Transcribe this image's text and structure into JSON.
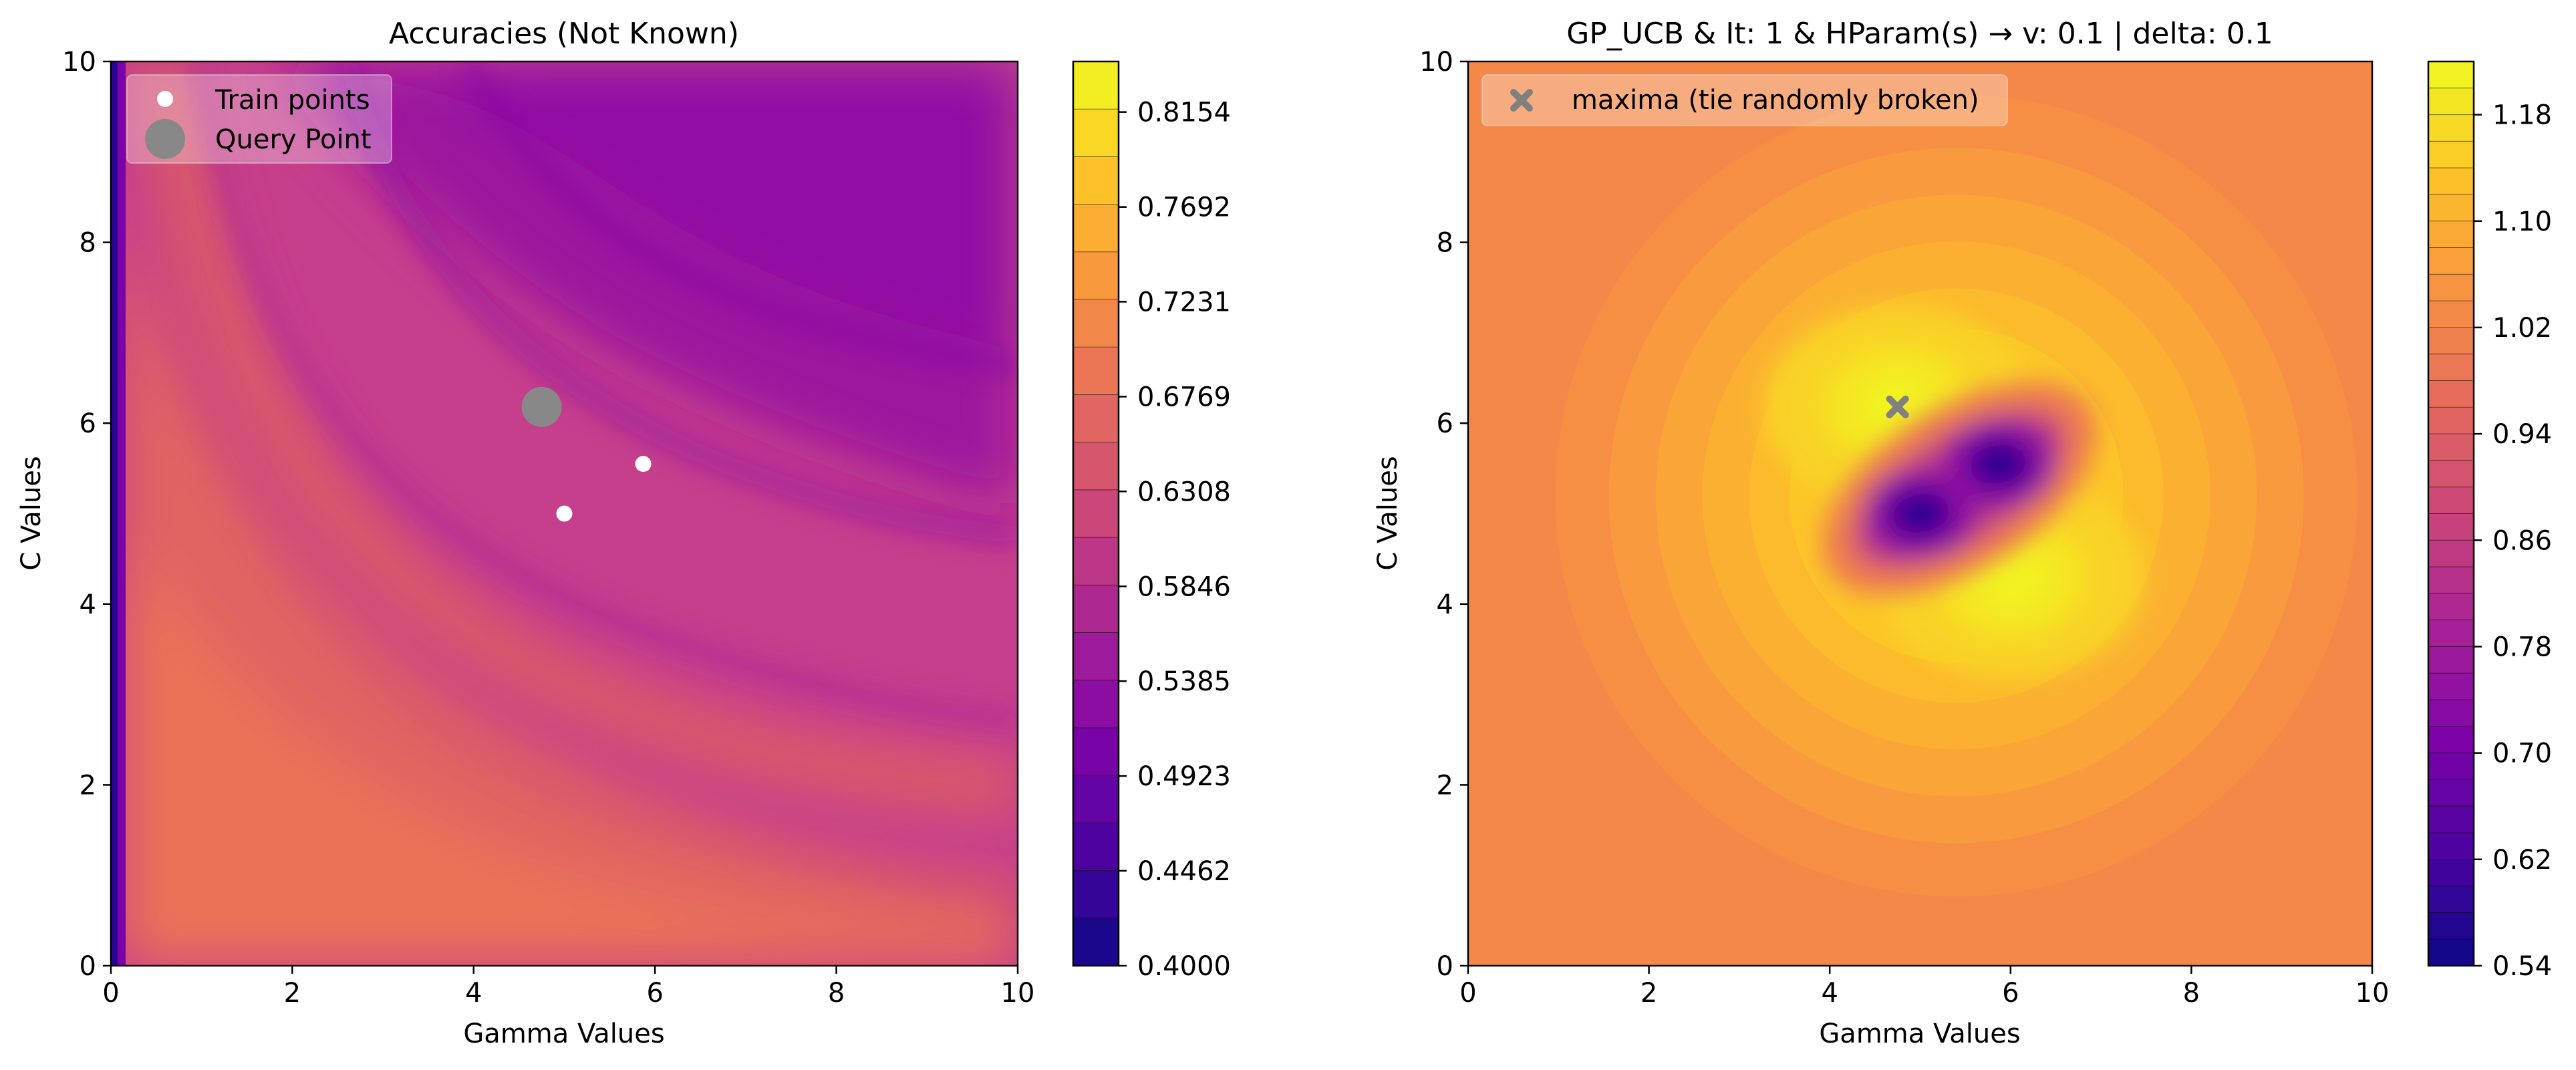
{
  "chart_data": [
    {
      "type": "heatmap",
      "title": "Accuracies (Not Known)",
      "xlabel": "Gamma Values",
      "ylabel": "C Values",
      "xlim": [
        0,
        10
      ],
      "ylim": [
        0,
        10
      ],
      "xticks": [
        "0",
        "2",
        "4",
        "6",
        "8",
        "10"
      ],
      "yticks": [
        "0",
        "2",
        "4",
        "6",
        "8",
        "10"
      ],
      "colormap": "plasma",
      "colorbar": {
        "min": 0.4,
        "max": 0.84,
        "tick_values": [
          0.4,
          0.4462,
          0.4923,
          0.5385,
          0.5846,
          0.6308,
          0.6769,
          0.7231,
          0.7692,
          0.8154
        ],
        "tick_labels": [
          "0.4000",
          "0.4462",
          "0.4923",
          "0.5385",
          "0.5846",
          "0.6308",
          "0.6769",
          "0.7231",
          "0.7692",
          "0.8154"
        ],
        "levels": 19
      },
      "legend": {
        "placement": "top-left",
        "entries": [
          {
            "label": "Train points",
            "marker": "circle",
            "color": "#ffffff"
          },
          {
            "label": "Query Point",
            "marker": "circle-large",
            "color": "#888888"
          }
        ]
      },
      "train_points": [
        {
          "x": 5.0,
          "y": 5.0
        },
        {
          "x": 5.87,
          "y": 5.55
        }
      ],
      "query_point": {
        "x": 4.75,
        "y": 6.18
      }
    },
    {
      "type": "heatmap",
      "title": "GP_UCB & It: 1 & HParam(s) → v: 0.1 | delta: 0.1",
      "xlabel": "Gamma Values",
      "ylabel": "C Values",
      "xlim": [
        0,
        10
      ],
      "ylim": [
        0,
        10
      ],
      "xticks": [
        "0",
        "2",
        "4",
        "6",
        "8",
        "10"
      ],
      "yticks": [
        "0",
        "2",
        "4",
        "6",
        "8",
        "10"
      ],
      "colormap": "plasma",
      "colorbar": {
        "min": 0.54,
        "max": 1.22,
        "tick_values": [
          0.54,
          0.62,
          0.7,
          0.78,
          0.86,
          0.94,
          1.02,
          1.1,
          1.18
        ],
        "tick_labels": [
          "0.54",
          "0.62",
          "0.70",
          "0.78",
          "0.86",
          "0.94",
          "1.02",
          "1.10",
          "1.18"
        ],
        "levels": 34
      },
      "legend": {
        "placement": "top-left",
        "entries": [
          {
            "label": "maxima (tie randomly broken)",
            "marker": "x",
            "color": "#808080"
          }
        ]
      },
      "maxima_point": {
        "x": 4.75,
        "y": 6.18
      },
      "surface_features": [
        {
          "kind": "min",
          "x": 5.0,
          "y": 5.0,
          "value": 0.58
        },
        {
          "kind": "min",
          "x": 5.87,
          "y": 5.55,
          "value": 0.58
        },
        {
          "kind": "max",
          "x": 4.75,
          "y": 6.18,
          "value": 1.21
        },
        {
          "kind": "max",
          "x": 6.0,
          "y": 4.3,
          "value": 1.21
        },
        {
          "kind": "background",
          "value": 1.02
        }
      ]
    }
  ]
}
